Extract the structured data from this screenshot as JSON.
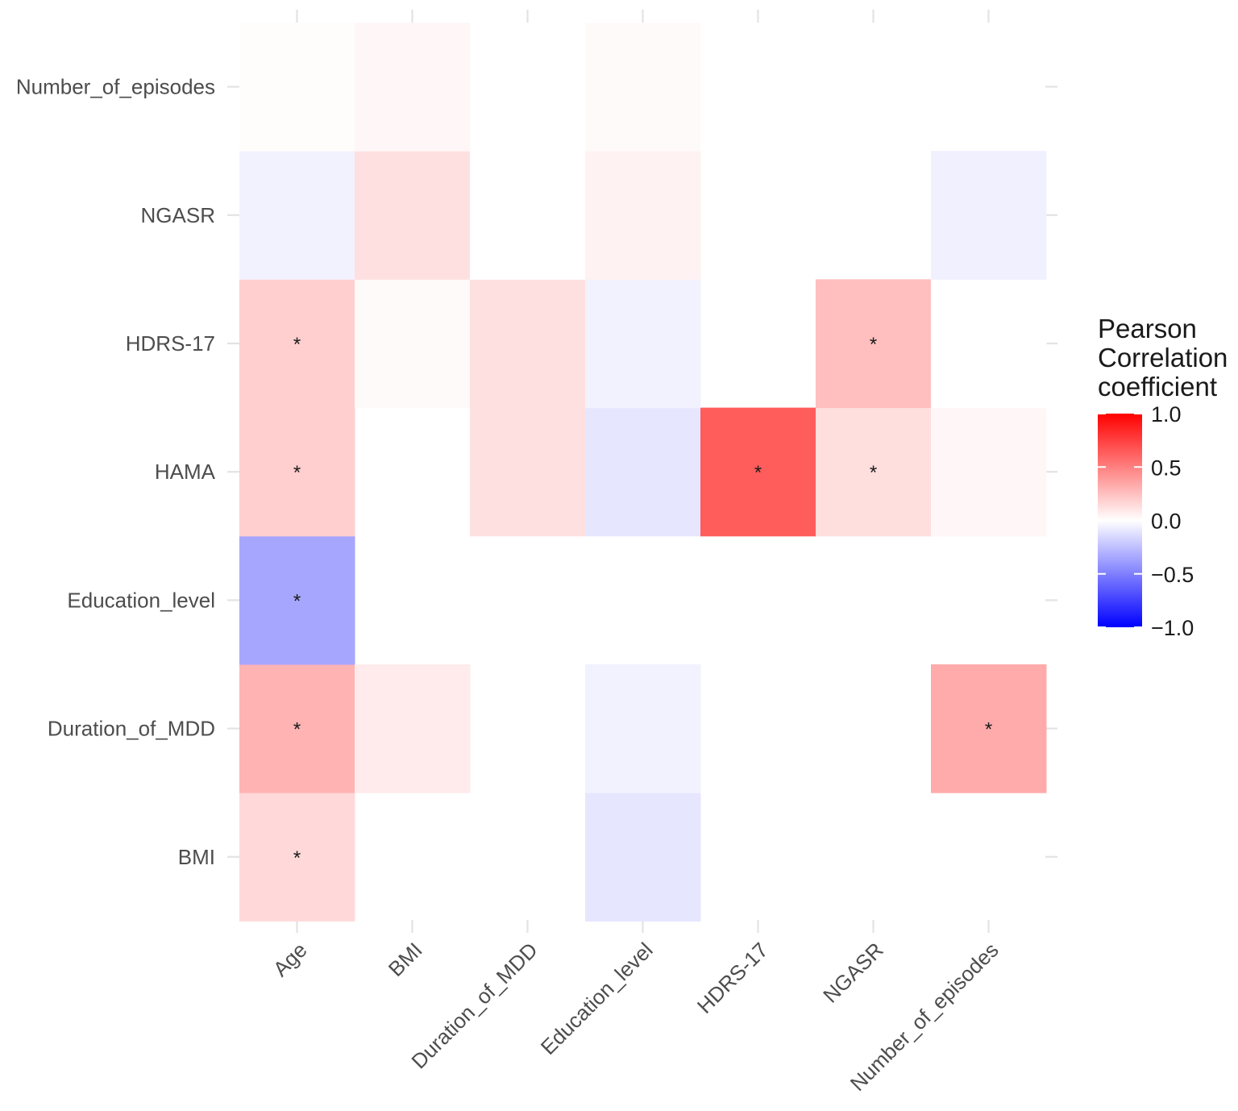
{
  "chart_data": {
    "type": "heatmap",
    "title": "",
    "xlabel": "",
    "ylabel": "",
    "x_categories": [
      "Age",
      "BMI",
      "Duration_of_MDD",
      "Education_level",
      "HDRS-17",
      "NGASR",
      "Number_of_episodes"
    ],
    "y_categories": [
      "BMI",
      "Duration_of_MDD",
      "Education_level",
      "HAMA",
      "HDRS-17",
      "NGASR",
      "Number_of_episodes"
    ],
    "cells": [
      {
        "x": "Age",
        "y": "BMI",
        "value": 0.15,
        "significant": true
      },
      {
        "x": "Education_level",
        "y": "BMI",
        "value": -0.1,
        "significant": false
      },
      {
        "x": "Age",
        "y": "Duration_of_MDD",
        "value": 0.3,
        "significant": true
      },
      {
        "x": "BMI",
        "y": "Duration_of_MDD",
        "value": 0.08,
        "significant": false
      },
      {
        "x": "Education_level",
        "y": "Duration_of_MDD",
        "value": -0.05,
        "significant": false
      },
      {
        "x": "Number_of_episodes",
        "y": "Duration_of_MDD",
        "value": 0.33,
        "significant": true
      },
      {
        "x": "Age",
        "y": "Education_level",
        "value": -0.35,
        "significant": true
      },
      {
        "x": "Age",
        "y": "HAMA",
        "value": 0.19,
        "significant": true
      },
      {
        "x": "Duration_of_MDD",
        "y": "HAMA",
        "value": 0.12,
        "significant": false
      },
      {
        "x": "Education_level",
        "y": "HAMA",
        "value": -0.1,
        "significant": false
      },
      {
        "x": "HDRS-17",
        "y": "HAMA",
        "value": 0.64,
        "significant": true
      },
      {
        "x": "NGASR",
        "y": "HAMA",
        "value": 0.13,
        "significant": true
      },
      {
        "x": "Number_of_episodes",
        "y": "HAMA",
        "value": 0.03,
        "significant": false
      },
      {
        "x": "Age",
        "y": "HDRS-17",
        "value": 0.19,
        "significant": true
      },
      {
        "x": "BMI",
        "y": "HDRS-17",
        "value": 0.02,
        "significant": false
      },
      {
        "x": "Duration_of_MDD",
        "y": "HDRS-17",
        "value": 0.12,
        "significant": false
      },
      {
        "x": "Education_level",
        "y": "HDRS-17",
        "value": -0.05,
        "significant": false
      },
      {
        "x": "NGASR",
        "y": "HDRS-17",
        "value": 0.25,
        "significant": true
      },
      {
        "x": "Number_of_episodes",
        "y": "HDRS-17",
        "value": 0.0,
        "significant": false
      },
      {
        "x": "Age",
        "y": "NGASR",
        "value": -0.05,
        "significant": false
      },
      {
        "x": "BMI",
        "y": "NGASR",
        "value": 0.12,
        "significant": false
      },
      {
        "x": "Duration_of_MDD",
        "y": "NGASR",
        "value": 0.0,
        "significant": false
      },
      {
        "x": "Education_level",
        "y": "NGASR",
        "value": 0.05,
        "significant": false
      },
      {
        "x": "Number_of_episodes",
        "y": "NGASR",
        "value": -0.06,
        "significant": false
      },
      {
        "x": "Age",
        "y": "Number_of_episodes",
        "value": 0.01,
        "significant": false
      },
      {
        "x": "BMI",
        "y": "Number_of_episodes",
        "value": 0.03,
        "significant": false
      },
      {
        "x": "Education_level",
        "y": "Number_of_episodes",
        "value": 0.02,
        "significant": false
      }
    ],
    "significance_marker": "*",
    "legend": {
      "title_lines": [
        "Pearson",
        "Correlation",
        "coefficient"
      ],
      "ticks": [
        1.0,
        0.5,
        0.0,
        -0.5,
        -1.0
      ],
      "tick_labels": [
        "1.0",
        "0.5",
        "0.0",
        "−0.5",
        "−1.0"
      ],
      "range": [
        -1.0,
        1.0
      ],
      "colors": {
        "high": "#ff0000",
        "mid": "#ffffff",
        "low": "#0000ff"
      },
      "position": "right"
    }
  }
}
